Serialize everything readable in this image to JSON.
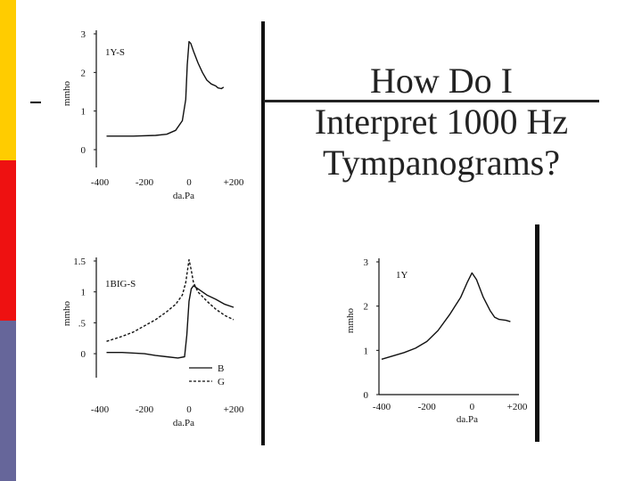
{
  "slide": {
    "title_lines": [
      "How Do I",
      "Interpret 1000 Hz",
      "Tympanograms?"
    ],
    "bullet": "-",
    "colors": {
      "bar_yellow": "#ffcc00",
      "bar_red": "#ee1111",
      "bar_purple": "#66669a"
    }
  },
  "chart_data": [
    {
      "type": "line",
      "label": "1Y-S",
      "xlabel": "da.Pa",
      "ylabel": "mmho",
      "xlim": [
        -400,
        200
      ],
      "ylim": [
        0,
        3
      ],
      "x_ticks": [
        "-400",
        "-200",
        "0",
        "+200"
      ],
      "y_ticks": [
        "0",
        "1",
        "2",
        "3"
      ],
      "series": [
        {
          "name": "1Y-S",
          "style": "solid",
          "x": [
            -370,
            -250,
            -150,
            -100,
            -60,
            -30,
            -15,
            -8,
            0,
            8,
            20,
            40,
            60,
            80,
            100,
            120,
            130,
            145,
            155
          ],
          "y": [
            0.35,
            0.35,
            0.37,
            0.4,
            0.5,
            0.75,
            1.3,
            2.2,
            2.8,
            2.75,
            2.55,
            2.25,
            2.0,
            1.8,
            1.7,
            1.65,
            1.6,
            1.58,
            1.62
          ]
        }
      ]
    },
    {
      "type": "line",
      "label": "1BIG-S",
      "xlabel": "da.Pa",
      "ylabel": "mmho",
      "xlim": [
        -400,
        200
      ],
      "ylim": [
        -0.1,
        1.5
      ],
      "x_ticks": [
        "-400",
        "-200",
        "0",
        "+200"
      ],
      "y_ticks": [
        "0",
        ".5",
        "1",
        "1.5"
      ],
      "legend": [
        "B",
        "G"
      ],
      "series": [
        {
          "name": "B",
          "style": "solid",
          "x": [
            -370,
            -300,
            -200,
            -150,
            -100,
            -50,
            -20,
            -10,
            0,
            10,
            20,
            40,
            60,
            80,
            120,
            160,
            200
          ],
          "y": [
            0.02,
            0.02,
            0.0,
            -0.03,
            -0.05,
            -0.07,
            -0.05,
            0.3,
            0.85,
            1.05,
            1.1,
            1.05,
            1.0,
            0.95,
            0.88,
            0.8,
            0.75
          ]
        },
        {
          "name": "G",
          "style": "dashed",
          "x": [
            -370,
            -300,
            -250,
            -200,
            -150,
            -100,
            -60,
            -30,
            -15,
            -5,
            0,
            10,
            20,
            40,
            80,
            120,
            160,
            200
          ],
          "y": [
            0.2,
            0.28,
            0.35,
            0.45,
            0.55,
            0.68,
            0.8,
            0.95,
            1.15,
            1.4,
            1.52,
            1.35,
            1.15,
            1.0,
            0.85,
            0.72,
            0.62,
            0.55
          ]
        }
      ]
    },
    {
      "type": "line",
      "label": "1Y",
      "xlabel": "da.Pa",
      "ylabel": "mmho",
      "xlim": [
        -400,
        200
      ],
      "ylim": [
        0,
        3
      ],
      "x_ticks": [
        "-400",
        "-200",
        "0",
        "+200"
      ],
      "y_ticks": [
        "0",
        "1",
        "2",
        "3"
      ],
      "series": [
        {
          "name": "1Y",
          "style": "solid",
          "x": [
            -400,
            -300,
            -250,
            -200,
            -150,
            -100,
            -50,
            -20,
            0,
            20,
            50,
            80,
            100,
            120,
            150,
            170
          ],
          "y": [
            0.8,
            0.95,
            1.05,
            1.2,
            1.45,
            1.8,
            2.2,
            2.55,
            2.75,
            2.6,
            2.2,
            1.9,
            1.75,
            1.7,
            1.68,
            1.65
          ]
        }
      ]
    }
  ]
}
